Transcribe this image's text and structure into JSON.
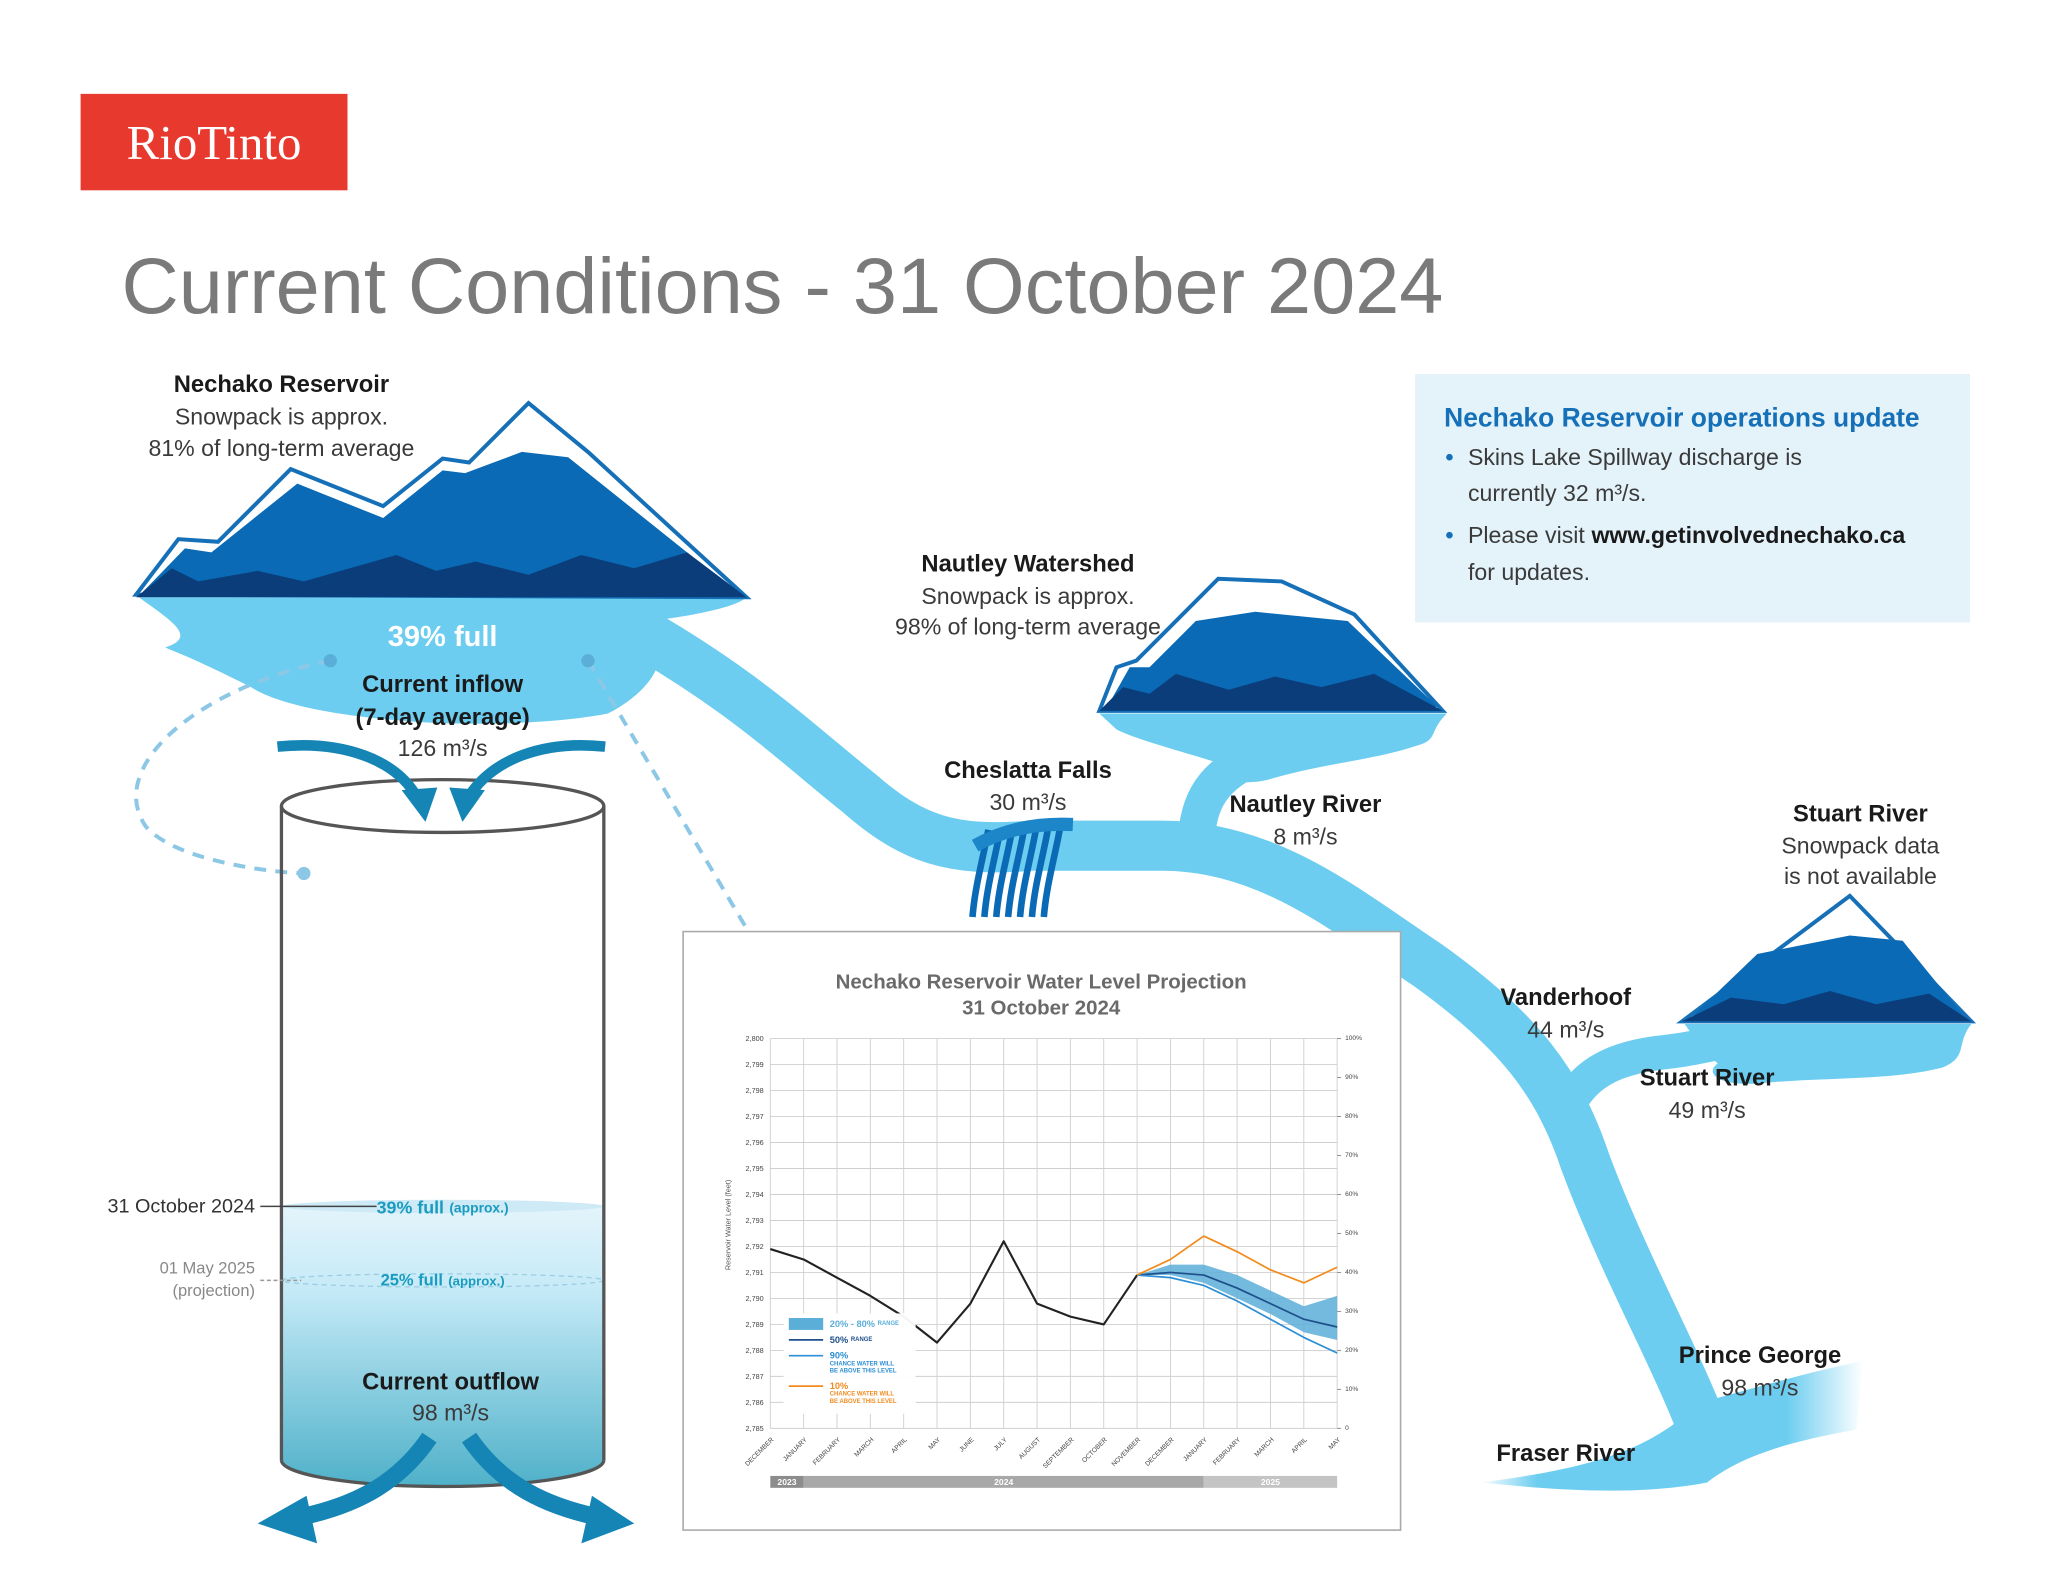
{
  "logo": "RioTinto",
  "title": "Current Conditions - 31 October 2024",
  "nechako_reservoir": {
    "name": "Nechako Reservoir",
    "snowpack": [
      "Snowpack is approx.",
      "81% of long-term average"
    ],
    "fill": "39% full",
    "inflow": {
      "label": "Current inflow",
      "period": "(7-day average)",
      "rate": "126 m³/s"
    }
  },
  "tank": {
    "current": {
      "date": "31 October 2024",
      "level": "39% full",
      "qualifier": "(approx.)"
    },
    "projection": {
      "date": "01 May 2025",
      "note": "(projection)",
      "level": "25% full",
      "qualifier": "(approx.)"
    },
    "outflow": {
      "label": "Current outflow",
      "rate": "98 m³/s"
    }
  },
  "nautley_watershed": {
    "name": "Nautley Watershed",
    "snowpack": [
      "Snowpack is approx.",
      "98% of long-term average"
    ]
  },
  "stuart_watershed": {
    "name": "Stuart River",
    "snowpack": [
      "Snowpack data",
      "is not available"
    ]
  },
  "flows": [
    {
      "name": "Cheslatta Falls",
      "rate": "30 m³/s"
    },
    {
      "name": "Nautley River",
      "rate": "8 m³/s"
    },
    {
      "name": "Vanderhoof",
      "rate": "44 m³/s"
    },
    {
      "name": "Stuart River",
      "rate": "49 m³/s"
    },
    {
      "name": "Prince George",
      "rate": "98 m³/s"
    }
  ],
  "fraser": "Fraser River",
  "update": {
    "title": "Nechako Reservoir operations update",
    "bullets": [
      {
        "lines": [
          "Skins Lake Spillway discharge is",
          "currently 32 m³/s."
        ]
      },
      {
        "lead": "Please visit",
        "link": "www.getinvolvednechako.ca",
        "tail": "for updates."
      }
    ]
  },
  "projection_chart": {
    "type": "line",
    "title": [
      "Nechako Reservoir Water Level Projection",
      "31 October 2024"
    ],
    "ylabel": "Reservoir Water Level (feet)",
    "categories": [
      "DECEMBER",
      "JANUARY",
      "FEBRUARY",
      "MARCH",
      "APRIL",
      "MAY",
      "JUNE",
      "JULY",
      "AUGUST",
      "SEPTEMBER",
      "OCTOBER",
      "NOVEMBER",
      "DECEMBER",
      "JANUARY",
      "FEBRUARY",
      "MARCH",
      "APRIL",
      "MAY"
    ],
    "years": [
      "2023",
      "2024",
      "2025"
    ],
    "ylim": [
      2785,
      2800
    ],
    "yticks": [
      {
        "value": 2785,
        "label": "2,785"
      },
      {
        "value": 2786,
        "label": "2,786"
      },
      {
        "value": 2787,
        "label": "2,787"
      },
      {
        "value": 2788,
        "label": "2,788"
      },
      {
        "value": 2789,
        "label": "2,789"
      },
      {
        "value": 2790,
        "label": "2,790"
      },
      {
        "value": 2791,
        "label": "2,791"
      },
      {
        "value": 2792,
        "label": "2,792"
      },
      {
        "value": 2793,
        "label": "2,793"
      },
      {
        "value": 2794,
        "label": "2,794"
      },
      {
        "value": 2795,
        "label": "2,795"
      },
      {
        "value": 2796,
        "label": "2,796"
      },
      {
        "value": 2797,
        "label": "2,797"
      },
      {
        "value": 2798,
        "label": "2,798"
      },
      {
        "value": 2799,
        "label": "2,799"
      },
      {
        "value": 2800,
        "label": "2,800"
      }
    ],
    "y2lim": [
      0,
      100
    ],
    "y2ticks": [
      0,
      {
        "value": 10,
        "label": "10%"
      },
      {
        "value": 20,
        "label": "20%"
      },
      {
        "value": 30,
        "label": "30%"
      },
      {
        "value": 40,
        "label": "40%"
      },
      {
        "value": 50,
        "label": "50%"
      },
      {
        "value": 60,
        "label": "60%"
      },
      {
        "value": 70,
        "label": "70%"
      },
      {
        "value": 80,
        "label": "80%"
      },
      {
        "value": 90,
        "label": "90%"
      },
      {
        "value": 100,
        "label": "100%"
      }
    ],
    "grid": true,
    "range_band": {
      "name": "20% - 80%",
      "note": [
        "RANGE"
      ],
      "color": "#5aaed8",
      "low": [
        null,
        null,
        null,
        null,
        null,
        null,
        null,
        null,
        null,
        null,
        null,
        2790.9,
        2790.9,
        2790.6,
        2790.0,
        2789.4,
        2788.7,
        2788.4
      ],
      "high": [
        null,
        null,
        null,
        null,
        null,
        null,
        null,
        null,
        null,
        null,
        null,
        2790.9,
        2791.3,
        2791.3,
        2790.9,
        2790.3,
        2789.7,
        2790.1
      ]
    },
    "series": [
      {
        "color": "#222222",
        "values": [
          2791.9,
          2791.5,
          2790.8,
          2790.1,
          2789.3,
          2788.3,
          2789.8,
          2792.2,
          2789.8,
          2789.3,
          2789.0,
          2790.9,
          null,
          null,
          null,
          null,
          null,
          null
        ]
      },
      {
        "name": "50%",
        "note": [
          "RANGE"
        ],
        "color": "#1d4f8a",
        "values": [
          null,
          null,
          null,
          null,
          null,
          null,
          null,
          null,
          null,
          null,
          null,
          2790.9,
          2791.0,
          2790.9,
          2790.4,
          2789.8,
          2789.2,
          2788.9
        ]
      },
      {
        "name": "90%",
        "note": [
          "CHANCE WATER WILL",
          "BE ABOVE THIS LEVEL"
        ],
        "color": "#2d8fd5",
        "values": [
          null,
          null,
          null,
          null,
          null,
          null,
          null,
          null,
          null,
          null,
          null,
          2790.9,
          2790.8,
          2790.5,
          2789.9,
          2789.2,
          2788.5,
          2787.9
        ]
      },
      {
        "name": "10%",
        "note": [
          "CHANCE WATER WILL",
          "BE ABOVE THIS LEVEL"
        ],
        "color": "#f28b1e",
        "values": [
          null,
          null,
          null,
          null,
          null,
          null,
          null,
          null,
          null,
          null,
          null,
          2790.9,
          2791.5,
          2792.4,
          2791.8,
          2791.1,
          2790.6,
          2791.2
        ]
      }
    ]
  }
}
